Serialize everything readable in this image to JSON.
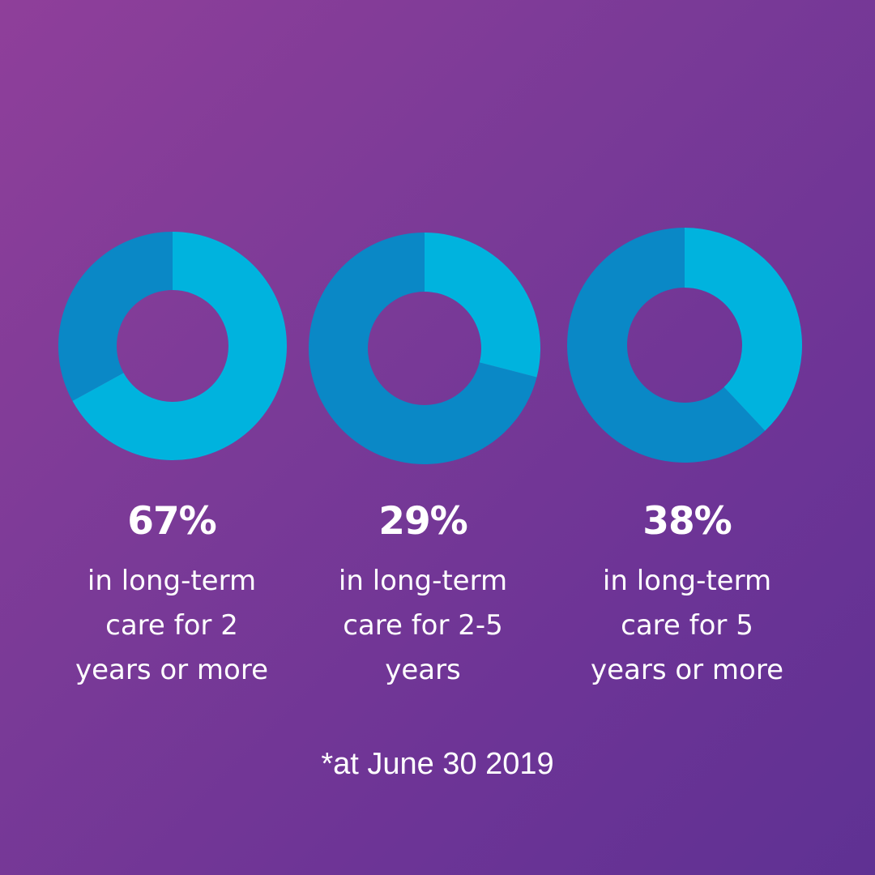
{
  "colors": {
    "segment_light": "#00b3de",
    "segment_dark": "#0a88c6",
    "text": "#ffffff"
  },
  "chart_data": [
    {
      "type": "pie",
      "value": 67,
      "label": "67%",
      "description": [
        "in long-term",
        "care for 2",
        "years or more"
      ]
    },
    {
      "type": "pie",
      "value": 29,
      "label": "29%",
      "description": [
        "in long-term",
        "care for 2-5",
        "years"
      ]
    },
    {
      "type": "pie",
      "value": 38,
      "label": "38%",
      "description": [
        "in long-term",
        "care for 5",
        "years or more"
      ]
    }
  ],
  "footnote": "*at June 30 2019"
}
